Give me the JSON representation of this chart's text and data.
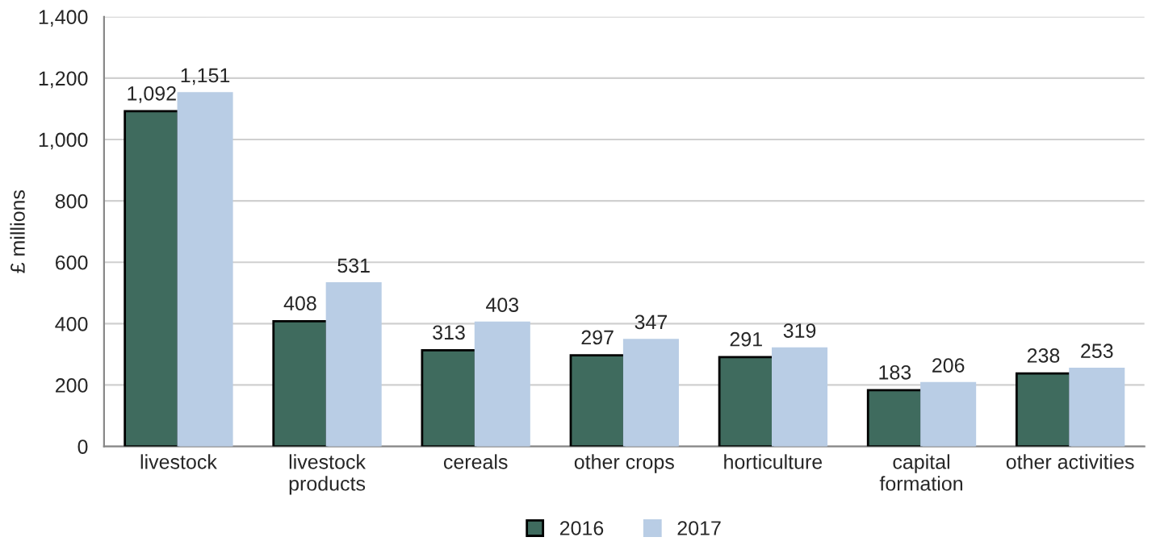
{
  "chart_data": {
    "type": "bar",
    "ylabel": "£ millions",
    "categories": [
      "livestock",
      "livestock\nproducts",
      "cereals",
      "other crops",
      "horticulture",
      "capital\nformation",
      "other activities"
    ],
    "series": [
      {
        "name": "2016",
        "color": "#3f6b5e",
        "values": [
          1092,
          408,
          313,
          297,
          291,
          183,
          238
        ],
        "value_labels": [
          "1,092",
          "408",
          "313",
          "297",
          "291",
          "183",
          "238"
        ]
      },
      {
        "name": "2017",
        "color": "#b9cde5",
        "values": [
          1151,
          531,
          403,
          347,
          319,
          206,
          253
        ],
        "value_labels": [
          "1,151",
          "531",
          "403",
          "347",
          "319",
          "206",
          "253"
        ]
      }
    ],
    "ylim": [
      0,
      1400
    ],
    "yticks": [
      {
        "value": 0,
        "label": "0"
      },
      {
        "value": 200,
        "label": "200"
      },
      {
        "value": 400,
        "label": "400"
      },
      {
        "value": 600,
        "label": "600"
      },
      {
        "value": 800,
        "label": "800"
      },
      {
        "value": 1000,
        "label": "1,000"
      },
      {
        "value": 1200,
        "label": "1,200"
      },
      {
        "value": 1400,
        "label": "1,400"
      }
    ],
    "grid": "y",
    "legend": "bottom"
  }
}
